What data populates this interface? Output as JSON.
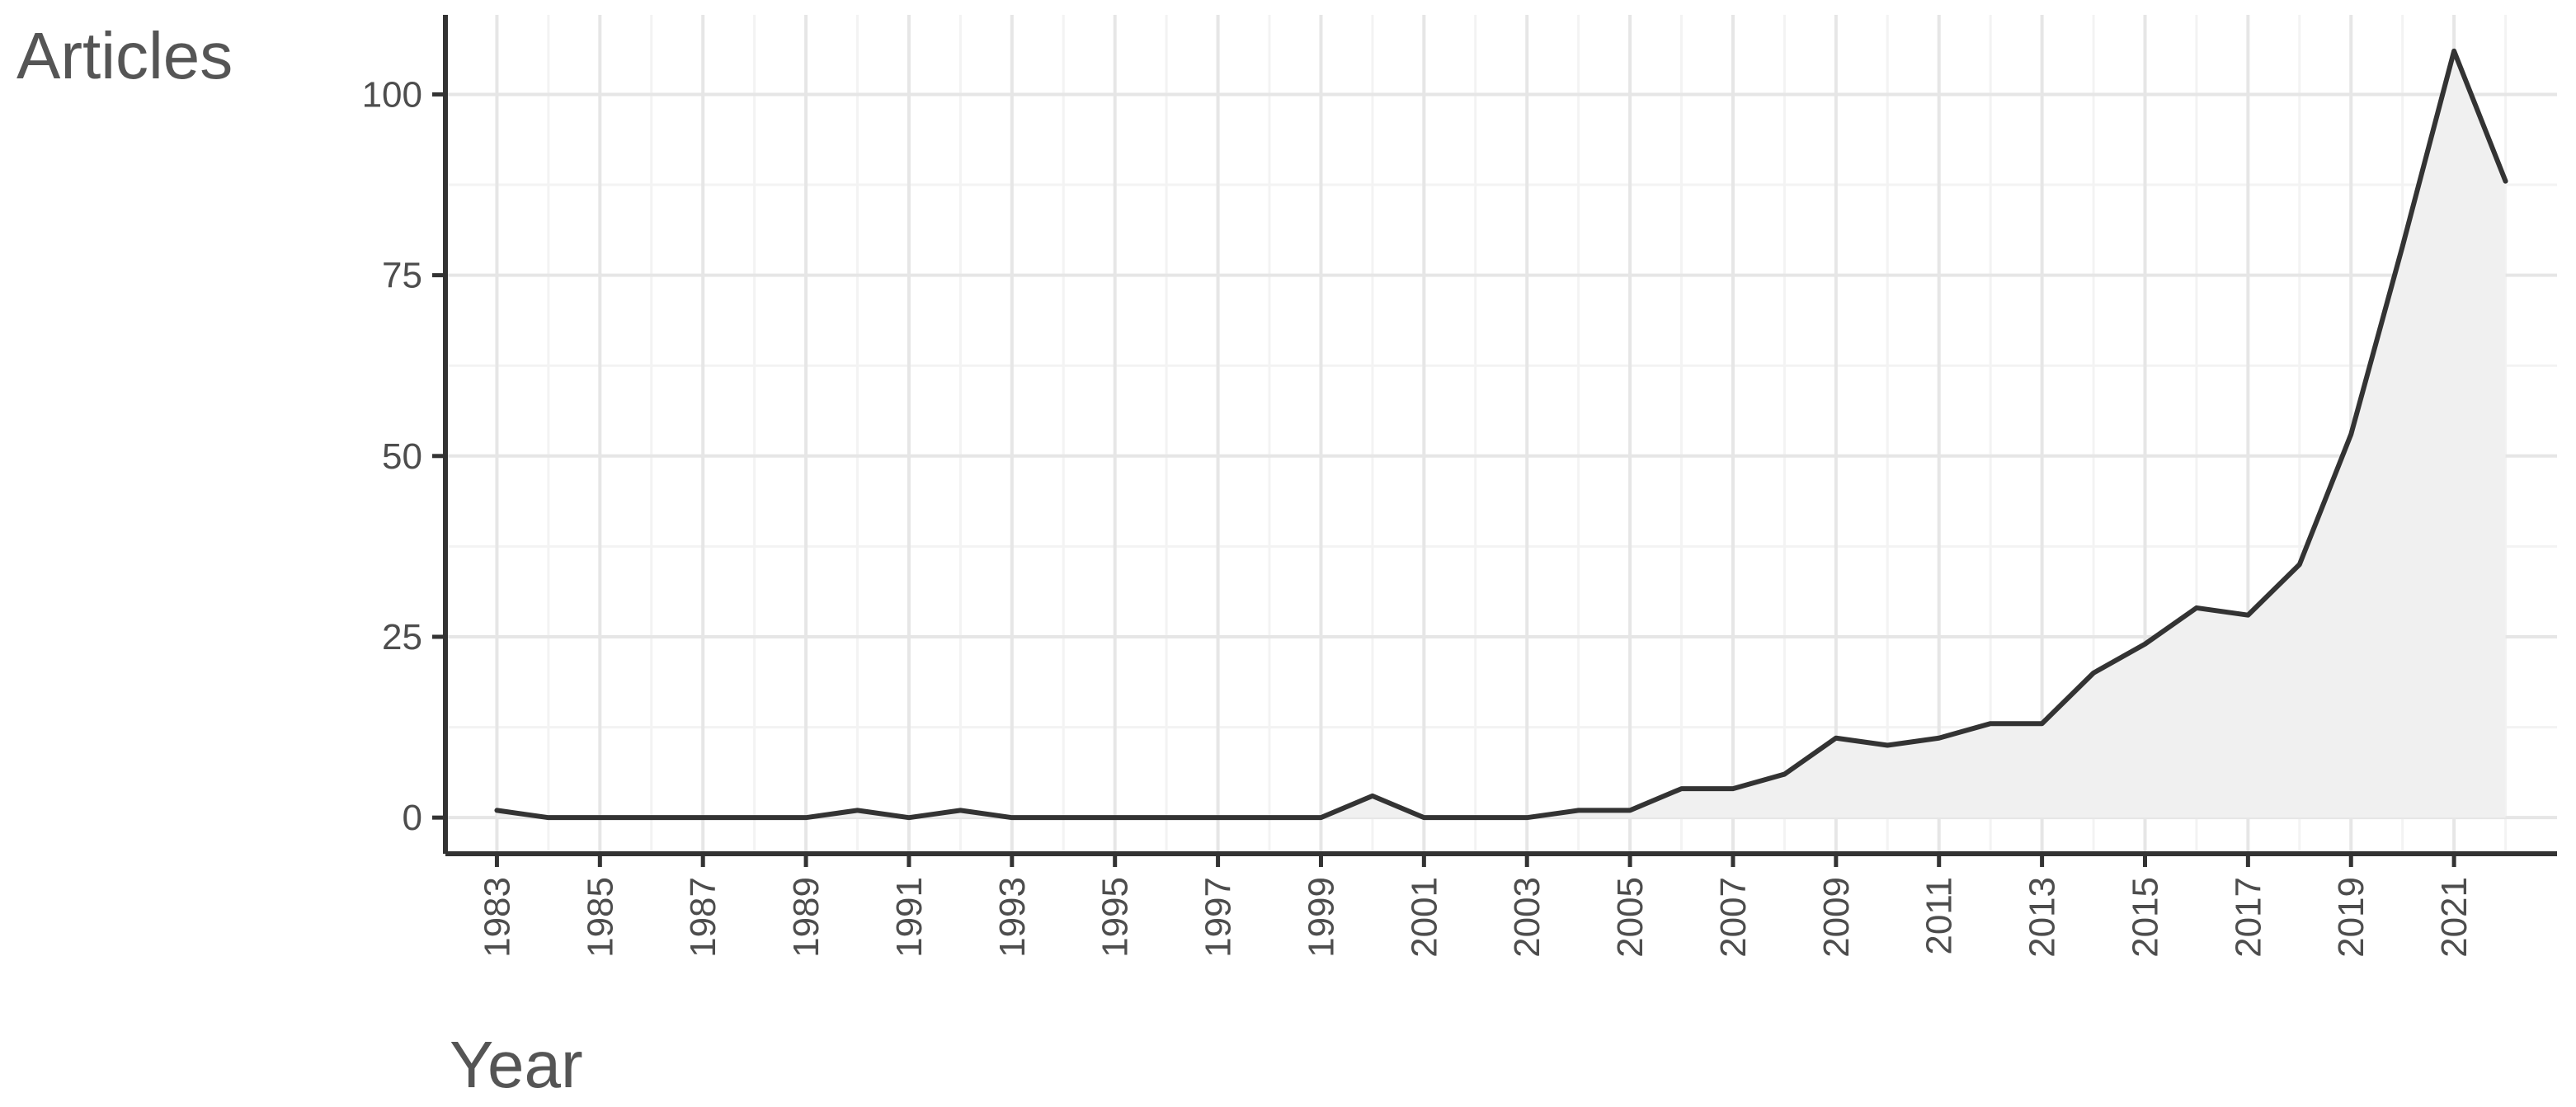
{
  "chart_data": {
    "type": "area",
    "ylabel": "Articles",
    "xlabel": "Year",
    "x": [
      1983,
      1984,
      1985,
      1986,
      1987,
      1988,
      1989,
      1990,
      1991,
      1992,
      1993,
      1994,
      1995,
      1996,
      1997,
      1998,
      1999,
      2000,
      2001,
      2002,
      2003,
      2004,
      2005,
      2006,
      2007,
      2008,
      2009,
      2010,
      2011,
      2012,
      2013,
      2014,
      2015,
      2016,
      2017,
      2018,
      2019,
      2020,
      2021,
      2022
    ],
    "series": [
      {
        "values": [
          1,
          0,
          0,
          0,
          0,
          0,
          0,
          1,
          0,
          1,
          0,
          0,
          0,
          0,
          0,
          0,
          0,
          3,
          0,
          0,
          0,
          1,
          1,
          4,
          4,
          6,
          11,
          10,
          11,
          13,
          13,
          20,
          24,
          29,
          28,
          35,
          53,
          79,
          106,
          88
        ]
      }
    ],
    "x_tick_labels": [
      "1983",
      "1985",
      "1987",
      "1989",
      "1991",
      "1993",
      "1995",
      "1997",
      "1999",
      "2001",
      "2003",
      "2005",
      "2007",
      "2009",
      "2011",
      "2013",
      "2015",
      "2017",
      "2019",
      "2021"
    ],
    "y_ticks": [
      0,
      25,
      50,
      75,
      100
    ],
    "xlim": [
      1982,
      2023
    ],
    "ylim": [
      -5,
      111
    ],
    "grid": true,
    "legend": "none",
    "colors": {
      "line": "#333333",
      "fill": "#f0f0f0",
      "grid_major": "#e6e6e6",
      "grid_minor": "#f3f3f3",
      "axis": "#333333"
    }
  }
}
